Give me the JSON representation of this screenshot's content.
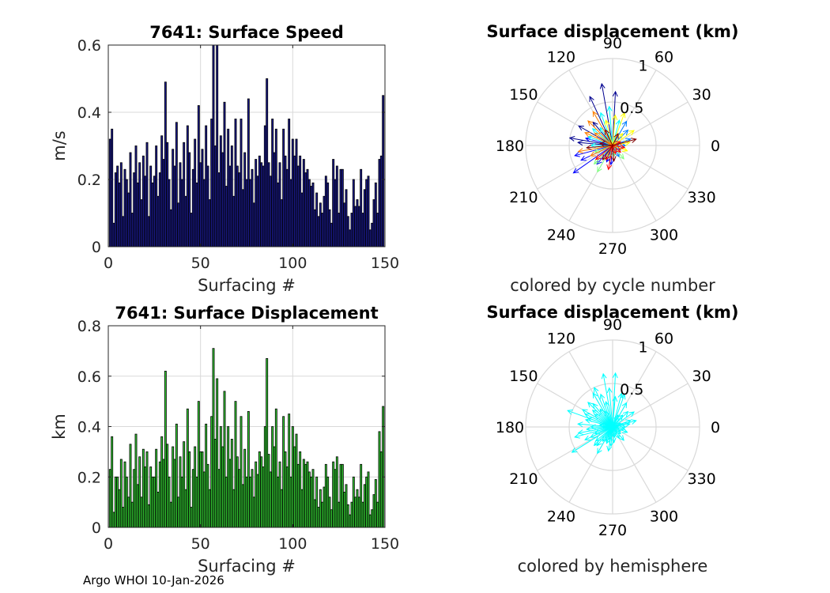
{
  "figure": {
    "footer": "Argo WHOI 10-Jan-2026"
  },
  "chart_data": [
    {
      "id": "speed",
      "type": "bar",
      "title": "7641: Surface Speed",
      "xlabel": "Surfacing #",
      "ylabel": "m/s",
      "xlim": [
        0,
        150
      ],
      "ylim": [
        0,
        0.6
      ],
      "xticks": [
        0,
        50,
        100,
        150
      ],
      "yticks": [
        0,
        0.2,
        0.4,
        0.6
      ],
      "ytick_labels": [
        "0",
        "0.2",
        "0.4",
        "0.6"
      ],
      "grid": true,
      "bar_color": "#1a1a8c",
      "values": [
        0.32,
        0.35,
        0.07,
        0.22,
        0.24,
        0.19,
        0.25,
        0.09,
        0.23,
        0.2,
        0.16,
        0.28,
        0.1,
        0.22,
        0.3,
        0.19,
        0.25,
        0.14,
        0.27,
        0.21,
        0.31,
        0.09,
        0.24,
        0.19,
        0.21,
        0.3,
        0.15,
        0.22,
        0.33,
        0.26,
        0.49,
        0.31,
        0.2,
        0.11,
        0.29,
        0.24,
        0.37,
        0.13,
        0.25,
        0.2,
        0.31,
        0.15,
        0.36,
        0.28,
        0.1,
        0.23,
        0.32,
        0.19,
        0.42,
        0.25,
        0.29,
        0.2,
        0.36,
        0.24,
        0.14,
        0.38,
        0.6,
        0.3,
        0.6,
        0.22,
        0.33,
        0.28,
        0.43,
        0.18,
        0.35,
        0.24,
        0.3,
        0.15,
        0.38,
        0.24,
        0.22,
        0.38,
        0.17,
        0.28,
        0.2,
        0.44,
        0.2,
        0.23,
        0.13,
        0.26,
        0.21,
        0.27,
        0.25,
        0.24,
        0.36,
        0.5,
        0.25,
        0.21,
        0.38,
        0.28,
        0.35,
        0.19,
        0.25,
        0.14,
        0.35,
        0.27,
        0.23,
        0.38,
        0.2,
        0.32,
        0.27,
        0.32,
        0.24,
        0.27,
        0.16,
        0.26,
        0.22,
        0.23,
        0.2,
        0.18,
        0.19,
        0.11,
        0.16,
        0.09,
        0.13,
        0.1,
        0.15,
        0.21,
        0.19,
        0.11,
        0.07,
        0.26,
        0.2,
        0.24,
        0.1,
        0.23,
        0.23,
        0.13,
        0.17,
        0.09,
        0.05,
        0.1,
        0.2,
        0.12,
        0.14,
        0.12,
        0.23,
        0.1,
        0.17,
        0.2,
        0.21,
        0.05,
        0.07,
        0.14,
        0.19,
        0.1,
        0.26,
        0.27,
        0.45
      ],
      "grid_color": "#d9d9d9",
      "axis_color": "#262626"
    },
    {
      "id": "displacement",
      "type": "bar",
      "title": "7641: Surface Displacement",
      "xlabel": "Surfacing #",
      "ylabel": "km",
      "xlim": [
        0,
        150
      ],
      "ylim": [
        0,
        0.8
      ],
      "xticks": [
        0,
        50,
        100,
        150
      ],
      "yticks": [
        0,
        0.2,
        0.4,
        0.6,
        0.8
      ],
      "ytick_labels": [
        "0",
        "0.2",
        "0.4",
        "0.6",
        "0.8"
      ],
      "grid": true,
      "bar_color": "#33cc33",
      "values": [
        0.23,
        0.36,
        0.06,
        0.2,
        0.2,
        0.15,
        0.27,
        0.08,
        0.26,
        0.2,
        0.12,
        0.33,
        0.1,
        0.23,
        0.37,
        0.17,
        0.28,
        0.12,
        0.31,
        0.24,
        0.3,
        0.09,
        0.24,
        0.2,
        0.2,
        0.31,
        0.14,
        0.26,
        0.36,
        0.27,
        0.62,
        0.33,
        0.2,
        0.1,
        0.32,
        0.27,
        0.41,
        0.12,
        0.28,
        0.2,
        0.34,
        0.15,
        0.47,
        0.3,
        0.08,
        0.23,
        0.32,
        0.2,
        0.5,
        0.3,
        0.3,
        0.22,
        0.41,
        0.25,
        0.15,
        0.44,
        0.71,
        0.35,
        0.59,
        0.23,
        0.4,
        0.32,
        0.54,
        0.2,
        0.4,
        0.27,
        0.35,
        0.15,
        0.5,
        0.28,
        0.23,
        0.44,
        0.17,
        0.31,
        0.2,
        0.46,
        0.2,
        0.23,
        0.12,
        0.26,
        0.21,
        0.3,
        0.28,
        0.24,
        0.4,
        0.67,
        0.29,
        0.22,
        0.4,
        0.32,
        0.47,
        0.2,
        0.26,
        0.15,
        0.44,
        0.3,
        0.24,
        0.45,
        0.2,
        0.4,
        0.32,
        0.37,
        0.25,
        0.3,
        0.15,
        0.27,
        0.25,
        0.26,
        0.22,
        0.2,
        0.23,
        0.11,
        0.2,
        0.08,
        0.15,
        0.1,
        0.16,
        0.25,
        0.2,
        0.12,
        0.07,
        0.26,
        0.23,
        0.28,
        0.1,
        0.25,
        0.25,
        0.14,
        0.17,
        0.09,
        0.05,
        0.1,
        0.2,
        0.12,
        0.15,
        0.12,
        0.25,
        0.1,
        0.17,
        0.2,
        0.22,
        0.05,
        0.07,
        0.13,
        0.19,
        0.1,
        0.38,
        0.3,
        0.48
      ],
      "grid_color": "#d9d9d9",
      "axis_color": "#262626"
    },
    {
      "id": "polar-cycle",
      "type": "polar-vectors",
      "title": "Surface displacement (km)",
      "caption": "colored by cycle number",
      "rmax": 1,
      "rings": [
        0.5,
        1
      ],
      "ring_labels": [
        "0.5",
        "1"
      ],
      "angle_labels": [
        "0",
        "30",
        "60",
        "90",
        "120",
        "150",
        "180",
        "210",
        "240",
        "270",
        "300",
        "330"
      ],
      "color_mode": "cycle",
      "colormap": [
        "#00008f",
        "#0000ff",
        "#0080ff",
        "#00ffff",
        "#80ff80",
        "#ffff00",
        "#ff8000",
        "#ff0000",
        "#800000"
      ],
      "vectors": [
        [
          100,
          0.72
        ],
        [
          87,
          0.62
        ],
        [
          115,
          0.62
        ],
        [
          130,
          0.35
        ],
        [
          150,
          0.45
        ],
        [
          170,
          0.5
        ],
        [
          175,
          0.4
        ],
        [
          165,
          0.32
        ],
        [
          195,
          0.45
        ],
        [
          205,
          0.4
        ],
        [
          215,
          0.55
        ],
        [
          230,
          0.28
        ],
        [
          250,
          0.2
        ],
        [
          265,
          0.22
        ],
        [
          300,
          0.15
        ],
        [
          330,
          0.1
        ],
        [
          0,
          0.15
        ],
        [
          20,
          0.22
        ],
        [
          45,
          0.25
        ],
        [
          60,
          0.32
        ],
        [
          75,
          0.3
        ],
        [
          95,
          0.45
        ],
        [
          110,
          0.4
        ],
        [
          125,
          0.25
        ],
        [
          140,
          0.3
        ],
        [
          160,
          0.3
        ],
        [
          180,
          0.25
        ],
        [
          200,
          0.22
        ],
        [
          225,
          0.3
        ],
        [
          240,
          0.35
        ],
        [
          255,
          0.15
        ],
        [
          280,
          0.12
        ],
        [
          310,
          0.2
        ],
        [
          340,
          0.18
        ],
        [
          10,
          0.2
        ],
        [
          35,
          0.3
        ],
        [
          50,
          0.18
        ],
        [
          70,
          0.4
        ],
        [
          85,
          0.35
        ],
        [
          105,
          0.3
        ],
        [
          120,
          0.45
        ],
        [
          135,
          0.4
        ],
        [
          145,
          0.25
        ],
        [
          155,
          0.35
        ],
        [
          190,
          0.4
        ],
        [
          205,
          0.28
        ],
        [
          220,
          0.25
        ],
        [
          245,
          0.18
        ],
        [
          260,
          0.28
        ],
        [
          290,
          0.1
        ],
        [
          320,
          0.12
        ],
        [
          350,
          0.14
        ],
        [
          25,
          0.1
        ],
        [
          65,
          0.15
        ],
        [
          115,
          0.2
        ],
        [
          170,
          0.15
        ],
        [
          185,
          0.3
        ],
        [
          235,
          0.2
        ],
        [
          275,
          0.18
        ],
        [
          15,
          0.28
        ]
      ],
      "grid_color": "#d9d9d9"
    },
    {
      "id": "polar-hemisphere",
      "type": "polar-vectors",
      "title": "Surface displacement (km)",
      "caption": "colored by hemisphere",
      "rmax": 1,
      "rings": [
        0.5,
        1
      ],
      "ring_labels": [
        "0.5",
        "1"
      ],
      "angle_labels": [
        "0",
        "30",
        "60",
        "90",
        "120",
        "150",
        "180",
        "210",
        "240",
        "270",
        "300",
        "330"
      ],
      "color_mode": "single",
      "vector_color": "#00ffff",
      "vectors": [
        [
          100,
          0.62
        ],
        [
          87,
          0.62
        ],
        [
          115,
          0.5
        ],
        [
          130,
          0.35
        ],
        [
          150,
          0.4
        ],
        [
          160,
          0.55
        ],
        [
          175,
          0.4
        ],
        [
          165,
          0.32
        ],
        [
          195,
          0.45
        ],
        [
          205,
          0.35
        ],
        [
          212,
          0.55
        ],
        [
          230,
          0.28
        ],
        [
          250,
          0.2
        ],
        [
          265,
          0.22
        ],
        [
          300,
          0.15
        ],
        [
          330,
          0.1
        ],
        [
          0,
          0.15
        ],
        [
          20,
          0.22
        ],
        [
          45,
          0.25
        ],
        [
          60,
          0.32
        ],
        [
          75,
          0.4
        ],
        [
          95,
          0.45
        ],
        [
          110,
          0.4
        ],
        [
          125,
          0.25
        ],
        [
          140,
          0.3
        ],
        [
          160,
          0.3
        ],
        [
          180,
          0.25
        ],
        [
          200,
          0.22
        ],
        [
          225,
          0.3
        ],
        [
          240,
          0.35
        ],
        [
          255,
          0.15
        ],
        [
          280,
          0.12
        ],
        [
          310,
          0.2
        ],
        [
          340,
          0.18
        ],
        [
          10,
          0.2
        ],
        [
          35,
          0.3
        ],
        [
          50,
          0.18
        ],
        [
          70,
          0.4
        ],
        [
          85,
          0.35
        ],
        [
          105,
          0.3
        ],
        [
          120,
          0.45
        ],
        [
          135,
          0.4
        ],
        [
          145,
          0.25
        ],
        [
          155,
          0.35
        ],
        [
          190,
          0.4
        ],
        [
          205,
          0.28
        ],
        [
          220,
          0.25
        ],
        [
          245,
          0.18
        ],
        [
          260,
          0.28
        ],
        [
          290,
          0.1
        ],
        [
          320,
          0.12
        ],
        [
          350,
          0.14
        ],
        [
          25,
          0.1
        ],
        [
          65,
          0.15
        ],
        [
          115,
          0.2
        ],
        [
          170,
          0.15
        ],
        [
          185,
          0.3
        ],
        [
          235,
          0.2
        ],
        [
          275,
          0.18
        ],
        [
          15,
          0.28
        ]
      ],
      "grid_color": "#d9d9d9"
    }
  ]
}
